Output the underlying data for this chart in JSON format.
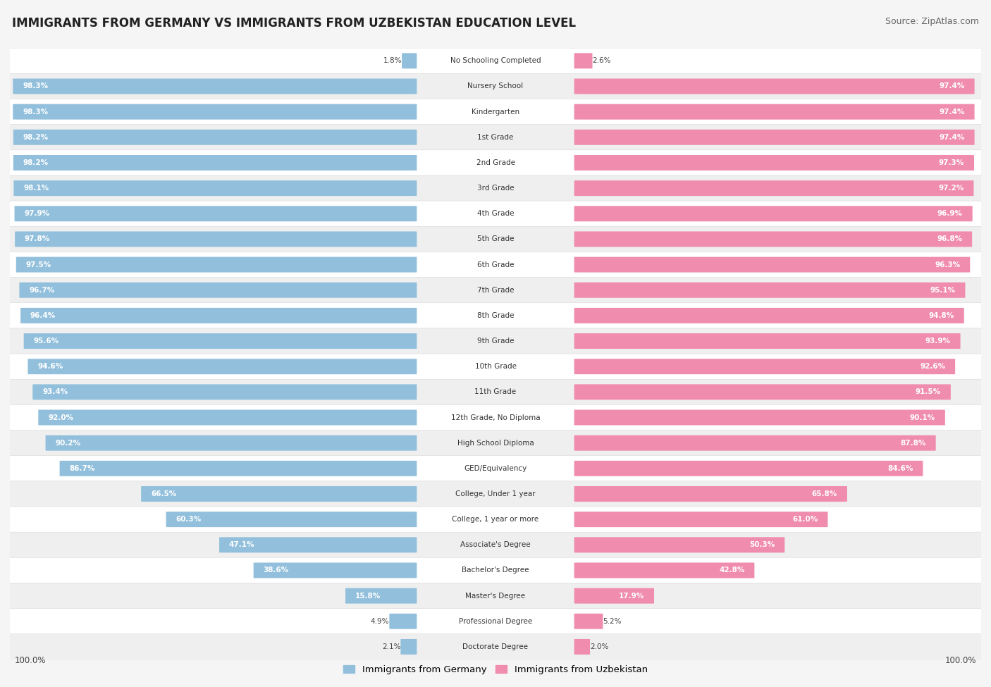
{
  "title": "IMMIGRANTS FROM GERMANY VS IMMIGRANTS FROM UZBEKISTAN EDUCATION LEVEL",
  "source": "Source: ZipAtlas.com",
  "categories": [
    "No Schooling Completed",
    "Nursery School",
    "Kindergarten",
    "1st Grade",
    "2nd Grade",
    "3rd Grade",
    "4th Grade",
    "5th Grade",
    "6th Grade",
    "7th Grade",
    "8th Grade",
    "9th Grade",
    "10th Grade",
    "11th Grade",
    "12th Grade, No Diploma",
    "High School Diploma",
    "GED/Equivalency",
    "College, Under 1 year",
    "College, 1 year or more",
    "Associate's Degree",
    "Bachelor's Degree",
    "Master's Degree",
    "Professional Degree",
    "Doctorate Degree"
  ],
  "germany_values": [
    1.8,
    98.3,
    98.3,
    98.2,
    98.2,
    98.1,
    97.9,
    97.8,
    97.5,
    96.7,
    96.4,
    95.6,
    94.6,
    93.4,
    92.0,
    90.2,
    86.7,
    66.5,
    60.3,
    47.1,
    38.6,
    15.8,
    4.9,
    2.1
  ],
  "uzbekistan_values": [
    2.6,
    97.4,
    97.4,
    97.4,
    97.3,
    97.2,
    96.9,
    96.8,
    96.3,
    95.1,
    94.8,
    93.9,
    92.6,
    91.5,
    90.1,
    87.8,
    84.6,
    65.8,
    61.0,
    50.3,
    42.8,
    17.9,
    5.2,
    2.0
  ],
  "germany_color": "#92c0dc",
  "uzbekistan_color": "#f08cae",
  "background_color": "#f5f5f5",
  "row_even_color": "#ffffff",
  "row_odd_color": "#efefef",
  "max_value": 100.0,
  "title_fontsize": 12,
  "source_fontsize": 9,
  "bar_label_fontsize": 7.5,
  "cat_label_fontsize": 7.5
}
